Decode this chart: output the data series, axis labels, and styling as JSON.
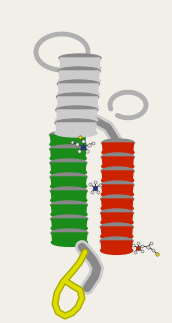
{
  "colors": {
    "green_helix": "#1a8c1a",
    "red_helix": "#cc2200",
    "gray_light": "#cccccc",
    "gray_dark": "#888888",
    "loop_gray": "#b0b0b0",
    "yellow_loop": "#dddd00",
    "yellow_dark": "#aaaa00",
    "bg": "#f2efe9"
  }
}
